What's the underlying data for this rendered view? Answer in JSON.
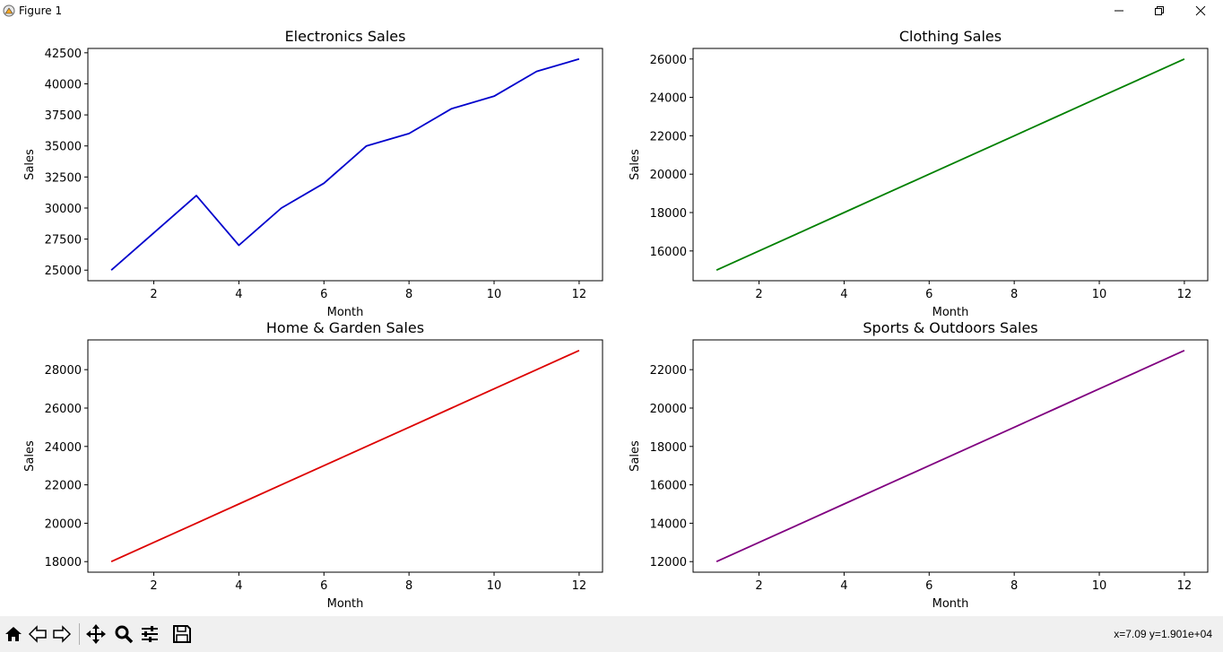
{
  "window": {
    "title": "Figure 1"
  },
  "status": {
    "coords": "x=7.09 y=1.901e+04"
  },
  "toolbar": {
    "icons": [
      "home-icon",
      "back-icon",
      "forward-icon",
      "pan-icon",
      "zoom-icon",
      "configure-icon",
      "save-icon"
    ]
  },
  "chart_data": [
    {
      "type": "line",
      "title": "Electronics Sales",
      "xlabel": "Month",
      "ylabel": "Sales",
      "x": [
        1,
        2,
        3,
        4,
        5,
        6,
        7,
        8,
        9,
        10,
        11,
        12
      ],
      "series": [
        {
          "values": [
            25000,
            28000,
            31000,
            27000,
            30000,
            32000,
            35000,
            36000,
            38000,
            39000,
            41000,
            42000
          ],
          "color": "#0000cc"
        }
      ],
      "xticks": [
        2,
        4,
        6,
        8,
        10,
        12
      ],
      "yticks": [
        25000,
        27500,
        30000,
        32500,
        35000,
        37500,
        40000,
        42500
      ],
      "xlim": [
        0.45,
        12.55
      ],
      "ylim": [
        24150,
        42850
      ]
    },
    {
      "type": "line",
      "title": "Clothing Sales",
      "xlabel": "Month",
      "ylabel": "Sales",
      "x": [
        1,
        2,
        3,
        4,
        5,
        6,
        7,
        8,
        9,
        10,
        11,
        12
      ],
      "series": [
        {
          "values": [
            15000,
            16000,
            17000,
            18000,
            19000,
            20000,
            21000,
            22000,
            23000,
            24000,
            25000,
            26000
          ],
          "color": "#008000"
        }
      ],
      "xticks": [
        2,
        4,
        6,
        8,
        10,
        12
      ],
      "yticks": [
        16000,
        18000,
        20000,
        22000,
        24000,
        26000
      ],
      "xlim": [
        0.45,
        12.55
      ],
      "ylim": [
        14450,
        26550
      ]
    },
    {
      "type": "line",
      "title": "Home & Garden Sales",
      "xlabel": "Month",
      "ylabel": "Sales",
      "x": [
        1,
        2,
        3,
        4,
        5,
        6,
        7,
        8,
        9,
        10,
        11,
        12
      ],
      "series": [
        {
          "values": [
            18000,
            19000,
            20000,
            21000,
            22000,
            23000,
            24000,
            25000,
            26000,
            27000,
            28000,
            29000
          ],
          "color": "#dd0000"
        }
      ],
      "xticks": [
        2,
        4,
        6,
        8,
        10,
        12
      ],
      "yticks": [
        18000,
        20000,
        22000,
        24000,
        26000,
        28000
      ],
      "xlim": [
        0.45,
        12.55
      ],
      "ylim": [
        17450,
        29550
      ]
    },
    {
      "type": "line",
      "title": "Sports & Outdoors Sales",
      "xlabel": "Month",
      "ylabel": "Sales",
      "x": [
        1,
        2,
        3,
        4,
        5,
        6,
        7,
        8,
        9,
        10,
        11,
        12
      ],
      "series": [
        {
          "values": [
            12000,
            13000,
            14000,
            15000,
            16000,
            17000,
            18000,
            19000,
            20000,
            21000,
            22000,
            23000
          ],
          "color": "#800080"
        }
      ],
      "xticks": [
        2,
        4,
        6,
        8,
        10,
        12
      ],
      "yticks": [
        12000,
        14000,
        16000,
        18000,
        20000,
        22000
      ],
      "xlim": [
        0.45,
        12.55
      ],
      "ylim": [
        11450,
        23550
      ]
    }
  ]
}
